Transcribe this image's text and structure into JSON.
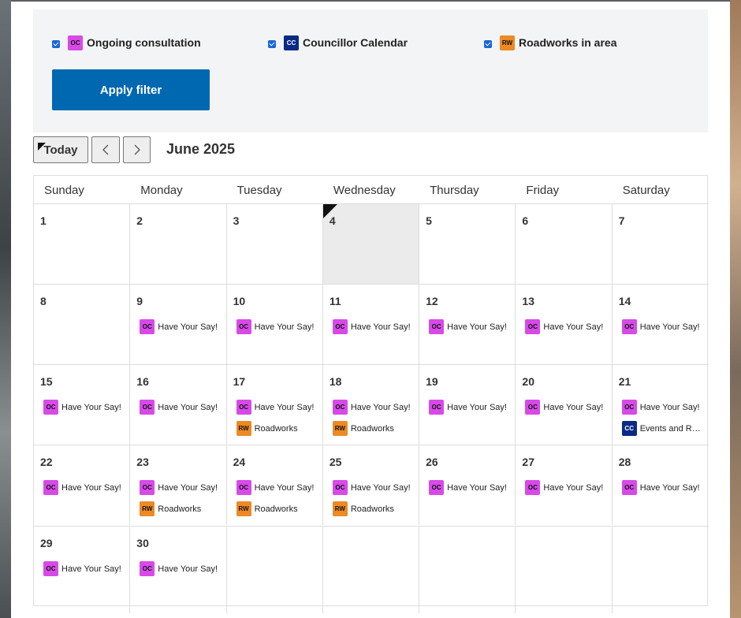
{
  "filters": [
    {
      "badge": "OC",
      "label": "Ongoing consultation",
      "color": "#d74ae8"
    },
    {
      "badge": "CC",
      "label": "Councillor Calendar",
      "color": "#0b2a85"
    },
    {
      "badge": "RW",
      "label": "Roadworks in area",
      "color": "#ec8a25"
    }
  ],
  "apply_button": "Apply filter",
  "toolbar": {
    "today": "Today",
    "month": "June 2025"
  },
  "calendar": {
    "weekdays": [
      "Sunday",
      "Monday",
      "Tuesday",
      "Wednesday",
      "Thursday",
      "Friday",
      "Saturday"
    ],
    "weeks": [
      [
        {
          "day": 1,
          "events": []
        },
        {
          "day": 2,
          "events": []
        },
        {
          "day": 3,
          "events": []
        },
        {
          "day": 4,
          "today": true,
          "events": []
        },
        {
          "day": 5,
          "events": []
        },
        {
          "day": 6,
          "events": []
        },
        {
          "day": 7,
          "events": []
        }
      ],
      [
        {
          "day": 8,
          "events": []
        },
        {
          "day": 9,
          "events": [
            {
              "badge": "OC",
              "title": "Have Your Say!"
            }
          ]
        },
        {
          "day": 10,
          "events": [
            {
              "badge": "OC",
              "title": "Have Your Say!"
            }
          ]
        },
        {
          "day": 11,
          "events": [
            {
              "badge": "OC",
              "title": "Have Your Say!"
            }
          ]
        },
        {
          "day": 12,
          "events": [
            {
              "badge": "OC",
              "title": "Have Your Say!"
            }
          ]
        },
        {
          "day": 13,
          "events": [
            {
              "badge": "OC",
              "title": "Have Your Say!"
            }
          ]
        },
        {
          "day": 14,
          "events": [
            {
              "badge": "OC",
              "title": "Have Your Say!"
            }
          ]
        }
      ],
      [
        {
          "day": 15,
          "events": [
            {
              "badge": "OC",
              "title": "Have Your Say!"
            }
          ]
        },
        {
          "day": 16,
          "events": [
            {
              "badge": "OC",
              "title": "Have Your Say!"
            }
          ]
        },
        {
          "day": 17,
          "events": [
            {
              "badge": "OC",
              "title": "Have Your Say!"
            },
            {
              "badge": "RW",
              "title": "Roadworks"
            }
          ]
        },
        {
          "day": 18,
          "events": [
            {
              "badge": "OC",
              "title": "Have Your Say!"
            },
            {
              "badge": "RW",
              "title": "Roadworks"
            }
          ]
        },
        {
          "day": 19,
          "events": [
            {
              "badge": "OC",
              "title": "Have Your Say!"
            }
          ]
        },
        {
          "day": 20,
          "events": [
            {
              "badge": "OC",
              "title": "Have Your Say!"
            }
          ]
        },
        {
          "day": 21,
          "events": [
            {
              "badge": "OC",
              "title": "Have Your Say!"
            },
            {
              "badge": "CC",
              "title": "Events and R…"
            }
          ]
        }
      ],
      [
        {
          "day": 22,
          "events": [
            {
              "badge": "OC",
              "title": "Have Your Say!"
            }
          ]
        },
        {
          "day": 23,
          "events": [
            {
              "badge": "OC",
              "title": "Have Your Say!"
            },
            {
              "badge": "RW",
              "title": "Roadworks"
            }
          ]
        },
        {
          "day": 24,
          "events": [
            {
              "badge": "OC",
              "title": "Have Your Say!"
            },
            {
              "badge": "RW",
              "title": "Roadworks"
            }
          ]
        },
        {
          "day": 25,
          "events": [
            {
              "badge": "OC",
              "title": "Have Your Say!"
            },
            {
              "badge": "RW",
              "title": "Roadworks"
            }
          ]
        },
        {
          "day": 26,
          "events": [
            {
              "badge": "OC",
              "title": "Have Your Say!"
            }
          ]
        },
        {
          "day": 27,
          "events": [
            {
              "badge": "OC",
              "title": "Have Your Say!"
            }
          ]
        },
        {
          "day": 28,
          "events": [
            {
              "badge": "OC",
              "title": "Have Your Say!"
            }
          ]
        }
      ],
      [
        {
          "day": 29,
          "events": [
            {
              "badge": "OC",
              "title": "Have Your Say!"
            }
          ]
        },
        {
          "day": 30,
          "events": [
            {
              "badge": "OC",
              "title": "Have Your Say!"
            }
          ]
        }
      ]
    ]
  }
}
